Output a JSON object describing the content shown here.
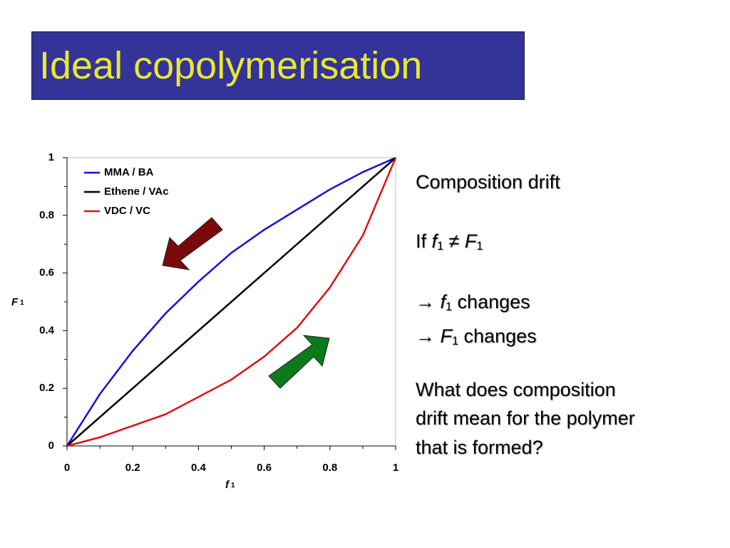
{
  "slide": {
    "title": "Ideal copolymerisation",
    "lines": [
      [
        {
          "text": "Composition drift"
        }
      ],
      [
        {
          "text": "If "
        },
        {
          "text": "f",
          "style": "italic"
        },
        {
          "text": "1",
          "style": "sub"
        },
        {
          "text": " ≠ "
        },
        {
          "text": "F",
          "style": "italic"
        },
        {
          "text": "1",
          "style": "sub"
        }
      ],
      [
        {
          "text": "→ "
        },
        {
          "text": "f",
          "style": "italic"
        },
        {
          "text": "1",
          "style": "sub"
        },
        {
          "text": " changes"
        }
      ],
      [
        {
          "text": "→ "
        },
        {
          "text": "F",
          "style": "italic"
        },
        {
          "text": "1",
          "style": "sub"
        },
        {
          "text": " changes"
        }
      ],
      [
        {
          "text": "What does composition"
        }
      ],
      [
        {
          "text": "drift mean for the polymer"
        }
      ],
      [
        {
          "text": "that is formed?"
        }
      ]
    ]
  },
  "chart_data": {
    "type": "line",
    "xlabel": [
      {
        "text": "f",
        "style": "italic"
      },
      {
        "text": "1",
        "style": "sub"
      }
    ],
    "ylabel": [
      {
        "text": "F",
        "style": "italic"
      },
      {
        "text": "1",
        "style": "sub"
      }
    ],
    "x": [
      0,
      0.1,
      0.2,
      0.3,
      0.4,
      0.5,
      0.6,
      0.7,
      0.8,
      0.9,
      1
    ],
    "series": [
      {
        "name": "MMA / BA",
        "color": "#1010e0",
        "values": [
          0,
          0.18,
          0.33,
          0.46,
          0.57,
          0.67,
          0.75,
          0.82,
          0.89,
          0.95,
          1
        ]
      },
      {
        "name": "Ethene / VAc",
        "color": "#000000",
        "values": [
          0,
          0.1,
          0.2,
          0.3,
          0.4,
          0.5,
          0.6,
          0.7,
          0.8,
          0.9,
          1
        ]
      },
      {
        "name": "VDC / VC",
        "color": "#e01010",
        "values": [
          0,
          0.03,
          0.07,
          0.11,
          0.17,
          0.23,
          0.31,
          0.41,
          0.55,
          0.73,
          1
        ]
      }
    ],
    "xlim": [
      0,
      1
    ],
    "ylim": [
      0,
      1
    ],
    "xticks": [
      0,
      0.2,
      0.4,
      0.6,
      0.8,
      1
    ],
    "yticks": [
      0,
      0.2,
      0.4,
      0.6,
      0.8,
      1
    ],
    "legend": "top-left"
  }
}
